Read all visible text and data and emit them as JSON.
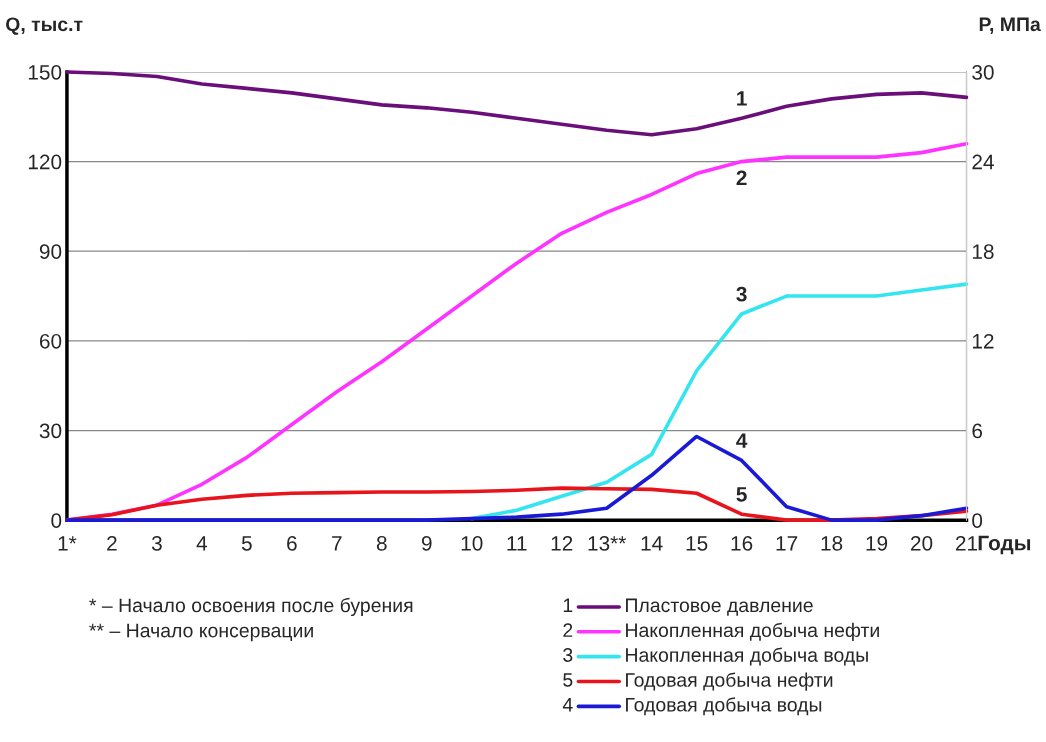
{
  "chart_data": {
    "type": "line",
    "ylabel": "Q, тыс.т",
    "y2label": "P, МПа",
    "xlabel": "Годы",
    "categories": [
      "1*",
      "2",
      "3",
      "4",
      "5",
      "6",
      "7",
      "8",
      "9",
      "10",
      "11",
      "12",
      "13**",
      "14",
      "15",
      "16",
      "17",
      "18",
      "19",
      "20",
      "21"
    ],
    "ylim": [
      0,
      150
    ],
    "yticks": [
      0,
      30,
      60,
      90,
      120,
      150
    ],
    "y2lim": [
      0,
      30
    ],
    "y2ticks": [
      0,
      6,
      12,
      18,
      24,
      30
    ],
    "grid": "y",
    "legend": "bottom",
    "line_style": "solid",
    "marker": "none",
    "series": [
      {
        "name": "Пластовое давление",
        "color": "#6a0f7a",
        "axis": "y2",
        "values": [
          30,
          29.9,
          29.7,
          29.2,
          28.9,
          28.6,
          28.2,
          27.8,
          27.6,
          27.3,
          26.9,
          26.5,
          26.1,
          25.8,
          26.2,
          26.9,
          27.7,
          28.2,
          28.5,
          28.6,
          28.3
        ]
      },
      {
        "name": "Накопленная добыча нефти",
        "color": "#ff33ff",
        "values": [
          0,
          2,
          5,
          12,
          21,
          32,
          43,
          53,
          64,
          75,
          86,
          96,
          103,
          109,
          116,
          120,
          121.5,
          121.5,
          121.5,
          123,
          126
        ]
      },
      {
        "name": "Накопленная добыча воды",
        "color": "#33e5ee",
        "values": [
          null,
          null,
          null,
          null,
          null,
          null,
          null,
          null,
          null,
          0.5,
          3.3,
          8,
          12.7,
          22,
          50,
          69,
          75,
          75,
          75,
          77,
          79
        ]
      },
      {
        "name": "Годовая добыча нефти",
        "color": "#e8141c",
        "values": [
          0,
          1.8,
          5,
          7,
          8.3,
          9,
          9.2,
          9.4,
          9.4,
          9.6,
          10,
          10.7,
          10.5,
          10.3,
          9,
          2,
          0,
          0,
          0.5,
          1.5,
          3
        ]
      },
      {
        "name": "Годовая добыча воды",
        "color": "#1a1ad6",
        "values": [
          0,
          0,
          0,
          0,
          0,
          0,
          0,
          0,
          0,
          0.5,
          1,
          2,
          4,
          15,
          28,
          20,
          4.5,
          0,
          0,
          1.5,
          4
        ]
      }
    ],
    "annotations": [
      "1",
      "2",
      "3",
      "5",
      "4",
      "* – Начало освоения после бурения",
      "** – Начало консервации"
    ]
  }
}
